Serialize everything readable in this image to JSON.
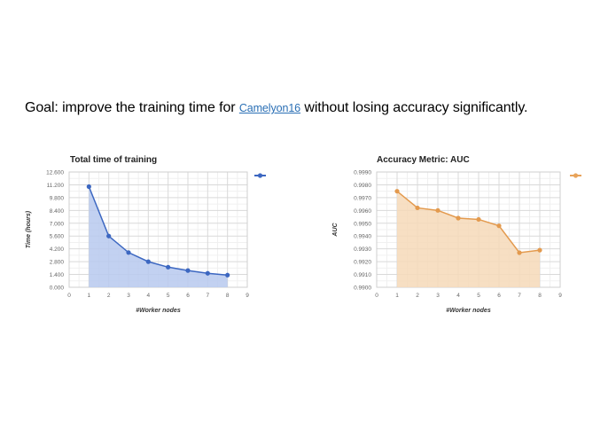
{
  "header": {
    "goal_prefix": "Goal: improve the training time for ",
    "link_text": "Camelyon16",
    "goal_suffix": " without losing accuracy significantly."
  },
  "chart_data": [
    {
      "type": "area",
      "title": "Total time of training",
      "xlabel": "#Worker nodes",
      "ylabel": "Time (hours)",
      "x": [
        1,
        2,
        3,
        4,
        5,
        6,
        7,
        8
      ],
      "values": [
        11000,
        5600,
        3800,
        2800,
        2200,
        1830,
        1530,
        1330
      ],
      "xlim": [
        0,
        9
      ],
      "ylim": [
        0,
        12600
      ],
      "x_ticks": [
        "0",
        "1",
        "2",
        "3",
        "4",
        "5",
        "6",
        "7",
        "8",
        "9"
      ],
      "y_ticks": [
        "0.000",
        "1.400",
        "2.800",
        "4.200",
        "5.600",
        "7.000",
        "8.400",
        "9.800",
        "11.200",
        "12.600"
      ],
      "grid": true,
      "legend": [
        {
          "name": "",
          "color": "#3c67c1"
        }
      ],
      "legend_position": "right",
      "color": "#3c67c1",
      "fill": "#b7c9ef"
    },
    {
      "type": "area",
      "title": "Accuracy Metric: AUC",
      "xlabel": "#Worker nodes",
      "ylabel": "AUC",
      "x": [
        1,
        2,
        3,
        4,
        5,
        6,
        7,
        8
      ],
      "values": [
        0.9975,
        0.9962,
        0.996,
        0.9954,
        0.9953,
        0.9948,
        0.9927,
        0.9929
      ],
      "xlim": [
        0,
        9
      ],
      "ylim": [
        0.99,
        0.999
      ],
      "x_ticks": [
        "0",
        "1",
        "2",
        "3",
        "4",
        "5",
        "6",
        "7",
        "8",
        "9"
      ],
      "y_ticks": [
        "0.9900",
        "0.9910",
        "0.9920",
        "0.9930",
        "0.9940",
        "0.9950",
        "0.9960",
        "0.9970",
        "0.9980",
        "0.9990"
      ],
      "grid": true,
      "legend": [
        {
          "name": "",
          "color": "#e8a35a"
        }
      ],
      "legend_position": "right",
      "color": "#e39a4e",
      "fill": "#f6d9b8"
    }
  ]
}
